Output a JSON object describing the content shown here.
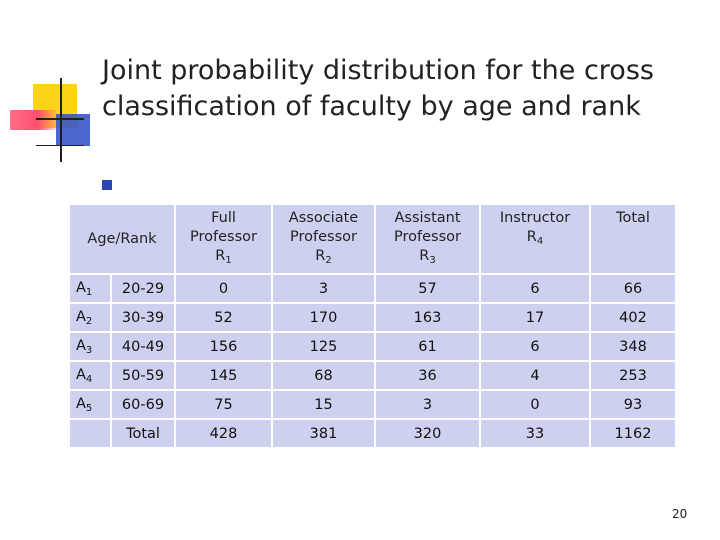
{
  "slide": {
    "title": "Joint probability distribution for the cross classification of faculty by age and rank",
    "page_number": "20"
  },
  "table": {
    "corner_header": "Age/Rank",
    "columns": [
      {
        "line1": "Full",
        "line2": "Professor",
        "sym": "R",
        "sub": "1"
      },
      {
        "line1": "Associate",
        "line2": "Professor",
        "sym": "R",
        "sub": "2"
      },
      {
        "line1": "Assistant",
        "line2": "Professor",
        "sym": "R",
        "sub": "3"
      },
      {
        "line1": "Instructor",
        "line2": "",
        "sym": "R",
        "sub": "4"
      },
      {
        "line1": "Total",
        "line2": "",
        "sym": "",
        "sub": ""
      }
    ],
    "rows": [
      {
        "sym": "A",
        "sub": "1",
        "range": "20-29",
        "values": [
          "0",
          "3",
          "57",
          "6",
          "66"
        ]
      },
      {
        "sym": "A",
        "sub": "2",
        "range": "30-39",
        "values": [
          "52",
          "170",
          "163",
          "17",
          "402"
        ]
      },
      {
        "sym": "A",
        "sub": "3",
        "range": "40-49",
        "values": [
          "156",
          "125",
          "61",
          "6",
          "348"
        ]
      },
      {
        "sym": "A",
        "sub": "4",
        "range": "50-59",
        "values": [
          "145",
          "68",
          "36",
          "4",
          "253"
        ]
      },
      {
        "sym": "A",
        "sub": "5",
        "range": "60-69",
        "values": [
          "75",
          "15",
          "3",
          "0",
          "93"
        ]
      }
    ],
    "total_row": {
      "label": "Total",
      "values": [
        "428",
        "381",
        "320",
        "33",
        "1162"
      ]
    }
  },
  "colors": {
    "cell_bg": "#cdd1ef",
    "bullet": "#2b45b5",
    "accent_yellow": "#ffd21a",
    "accent_red": "#ff4e6e",
    "accent_blue": "#3556c7"
  }
}
